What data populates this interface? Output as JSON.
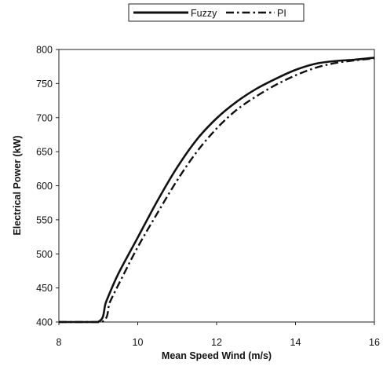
{
  "chart_data": {
    "type": "line",
    "title": "",
    "xlabel": "Mean Speed Wind (m/s)",
    "ylabel": "Electrical Power (kW)",
    "xlim": [
      8,
      16
    ],
    "ylim": [
      400,
      800
    ],
    "xticks": [
      "8",
      "10",
      "12",
      "14",
      "16"
    ],
    "yticks": [
      "400",
      "450",
      "500",
      "550",
      "600",
      "650",
      "700",
      "750",
      "800"
    ],
    "grid": false,
    "legend_position": "top-center, boxed",
    "series": [
      {
        "name": "Fuzzy",
        "line_style": "solid",
        "color": "#111111",
        "x": [
          8.0,
          8.99,
          9.2,
          9.5,
          10.0,
          10.5,
          11.0,
          11.5,
          12.0,
          12.5,
          13.0,
          13.5,
          14.0,
          14.5,
          15.0,
          15.5,
          16.0
        ],
        "y": [
          400,
          400,
          430,
          470,
          524,
          578,
          627,
          668,
          699,
          723,
          742,
          757,
          770,
          779,
          783,
          785,
          788
        ]
      },
      {
        "name": "PI",
        "line_style": "dash-dot",
        "color": "#111111",
        "x": [
          8.0,
          9.08,
          9.3,
          9.6,
          10.0,
          10.5,
          11.0,
          11.5,
          12.0,
          12.5,
          13.0,
          13.5,
          14.0,
          14.5,
          15.0,
          15.5,
          16.0
        ],
        "y": [
          400,
          400,
          430,
          465,
          510,
          560,
          608,
          650,
          684,
          711,
          731,
          748,
          762,
          773,
          780,
          784,
          787
        ]
      }
    ]
  }
}
